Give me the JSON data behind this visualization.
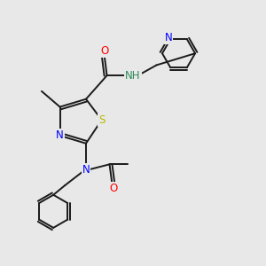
{
  "background_color": "#e8e8e8",
  "bond_color": "#1a1a1a",
  "atom_colors": {
    "N": "#0000ff",
    "O": "#ff0000",
    "S": "#b8b800",
    "C": "#1a1a1a",
    "H": "#2e8b57",
    "NH": "#2e8b57"
  },
  "figsize": [
    3.0,
    3.0
  ],
  "dpi": 100
}
